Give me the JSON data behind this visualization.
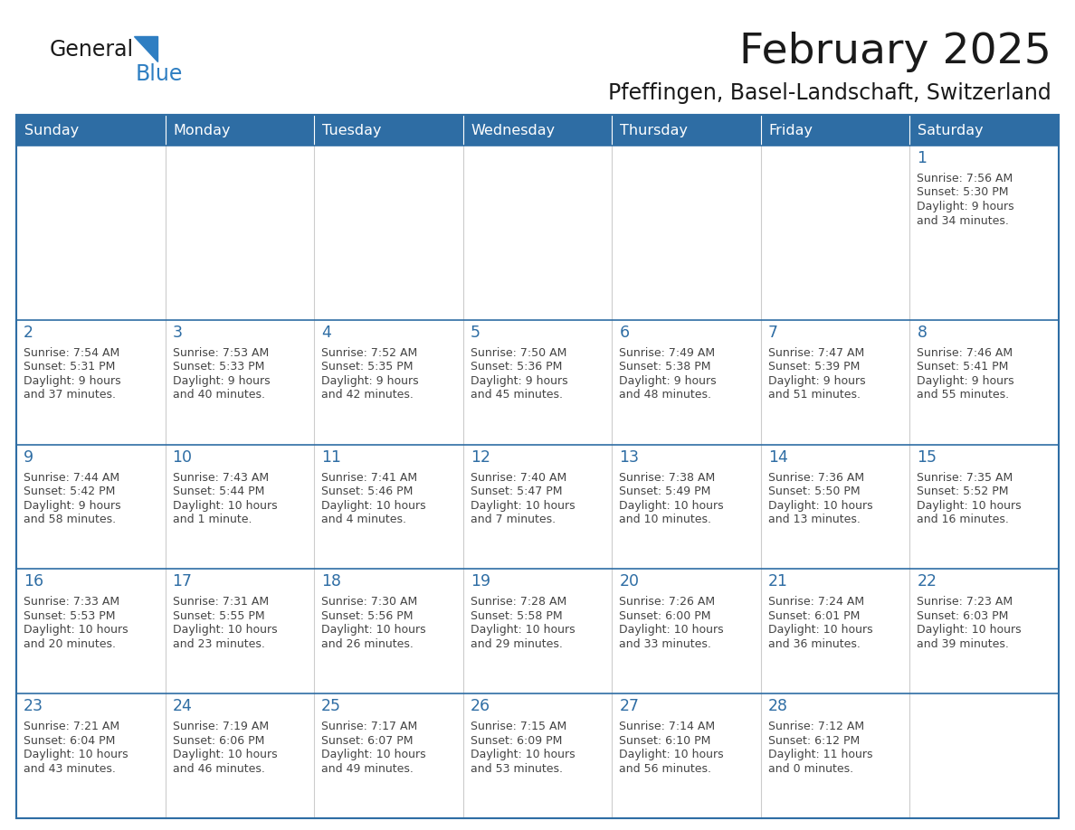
{
  "title": "February 2025",
  "subtitle": "Pfeffingen, Basel-Landschaft, Switzerland",
  "days_header": [
    "Sunday",
    "Monday",
    "Tuesday",
    "Wednesday",
    "Thursday",
    "Friday",
    "Saturday"
  ],
  "header_bg": "#2E6DA4",
  "header_text_color": "#FFFFFF",
  "cell_bg": "#FFFFFF",
  "cell_top_strip": "#F0F0F0",
  "border_color": "#2E6DA4",
  "day_number_color": "#2E6DA4",
  "text_color": "#444444",
  "logo_general_color": "#1a1a1a",
  "logo_blue_color": "#2E7EC2",
  "calendar": [
    [
      {
        "day": null,
        "info": ""
      },
      {
        "day": null,
        "info": ""
      },
      {
        "day": null,
        "info": ""
      },
      {
        "day": null,
        "info": ""
      },
      {
        "day": null,
        "info": ""
      },
      {
        "day": null,
        "info": ""
      },
      {
        "day": 1,
        "info": "Sunrise: 7:56 AM\nSunset: 5:30 PM\nDaylight: 9 hours\nand 34 minutes."
      }
    ],
    [
      {
        "day": 2,
        "info": "Sunrise: 7:54 AM\nSunset: 5:31 PM\nDaylight: 9 hours\nand 37 minutes."
      },
      {
        "day": 3,
        "info": "Sunrise: 7:53 AM\nSunset: 5:33 PM\nDaylight: 9 hours\nand 40 minutes."
      },
      {
        "day": 4,
        "info": "Sunrise: 7:52 AM\nSunset: 5:35 PM\nDaylight: 9 hours\nand 42 minutes."
      },
      {
        "day": 5,
        "info": "Sunrise: 7:50 AM\nSunset: 5:36 PM\nDaylight: 9 hours\nand 45 minutes."
      },
      {
        "day": 6,
        "info": "Sunrise: 7:49 AM\nSunset: 5:38 PM\nDaylight: 9 hours\nand 48 minutes."
      },
      {
        "day": 7,
        "info": "Sunrise: 7:47 AM\nSunset: 5:39 PM\nDaylight: 9 hours\nand 51 minutes."
      },
      {
        "day": 8,
        "info": "Sunrise: 7:46 AM\nSunset: 5:41 PM\nDaylight: 9 hours\nand 55 minutes."
      }
    ],
    [
      {
        "day": 9,
        "info": "Sunrise: 7:44 AM\nSunset: 5:42 PM\nDaylight: 9 hours\nand 58 minutes."
      },
      {
        "day": 10,
        "info": "Sunrise: 7:43 AM\nSunset: 5:44 PM\nDaylight: 10 hours\nand 1 minute."
      },
      {
        "day": 11,
        "info": "Sunrise: 7:41 AM\nSunset: 5:46 PM\nDaylight: 10 hours\nand 4 minutes."
      },
      {
        "day": 12,
        "info": "Sunrise: 7:40 AM\nSunset: 5:47 PM\nDaylight: 10 hours\nand 7 minutes."
      },
      {
        "day": 13,
        "info": "Sunrise: 7:38 AM\nSunset: 5:49 PM\nDaylight: 10 hours\nand 10 minutes."
      },
      {
        "day": 14,
        "info": "Sunrise: 7:36 AM\nSunset: 5:50 PM\nDaylight: 10 hours\nand 13 minutes."
      },
      {
        "day": 15,
        "info": "Sunrise: 7:35 AM\nSunset: 5:52 PM\nDaylight: 10 hours\nand 16 minutes."
      }
    ],
    [
      {
        "day": 16,
        "info": "Sunrise: 7:33 AM\nSunset: 5:53 PM\nDaylight: 10 hours\nand 20 minutes."
      },
      {
        "day": 17,
        "info": "Sunrise: 7:31 AM\nSunset: 5:55 PM\nDaylight: 10 hours\nand 23 minutes."
      },
      {
        "day": 18,
        "info": "Sunrise: 7:30 AM\nSunset: 5:56 PM\nDaylight: 10 hours\nand 26 minutes."
      },
      {
        "day": 19,
        "info": "Sunrise: 7:28 AM\nSunset: 5:58 PM\nDaylight: 10 hours\nand 29 minutes."
      },
      {
        "day": 20,
        "info": "Sunrise: 7:26 AM\nSunset: 6:00 PM\nDaylight: 10 hours\nand 33 minutes."
      },
      {
        "day": 21,
        "info": "Sunrise: 7:24 AM\nSunset: 6:01 PM\nDaylight: 10 hours\nand 36 minutes."
      },
      {
        "day": 22,
        "info": "Sunrise: 7:23 AM\nSunset: 6:03 PM\nDaylight: 10 hours\nand 39 minutes."
      }
    ],
    [
      {
        "day": 23,
        "info": "Sunrise: 7:21 AM\nSunset: 6:04 PM\nDaylight: 10 hours\nand 43 minutes."
      },
      {
        "day": 24,
        "info": "Sunrise: 7:19 AM\nSunset: 6:06 PM\nDaylight: 10 hours\nand 46 minutes."
      },
      {
        "day": 25,
        "info": "Sunrise: 7:17 AM\nSunset: 6:07 PM\nDaylight: 10 hours\nand 49 minutes."
      },
      {
        "day": 26,
        "info": "Sunrise: 7:15 AM\nSunset: 6:09 PM\nDaylight: 10 hours\nand 53 minutes."
      },
      {
        "day": 27,
        "info": "Sunrise: 7:14 AM\nSunset: 6:10 PM\nDaylight: 10 hours\nand 56 minutes."
      },
      {
        "day": 28,
        "info": "Sunrise: 7:12 AM\nSunset: 6:12 PM\nDaylight: 11 hours\nand 0 minutes."
      },
      {
        "day": null,
        "info": ""
      }
    ]
  ]
}
